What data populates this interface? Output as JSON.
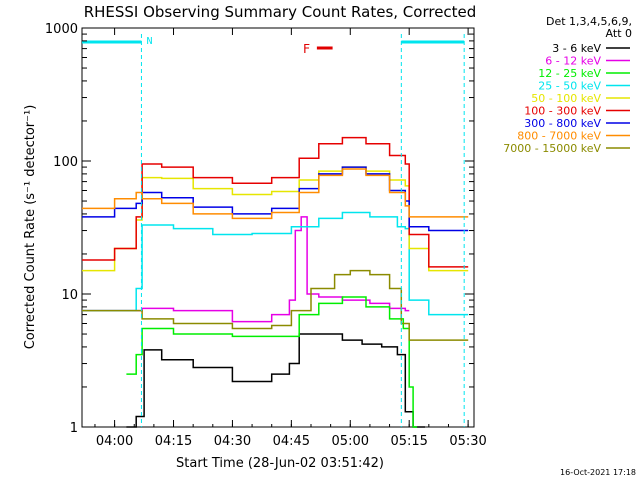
{
  "chart_data": {
    "type": "line",
    "title": "RHESSI Observing Summary Count Rates, Corrected",
    "xlabel": "Start Time (28-Jun-02 03:51:42)",
    "ylabel": "Corrected Count Rate (s⁻¹ detector⁻¹)",
    "y_scale": "log",
    "ylim": [
      1,
      1000
    ],
    "xlim": [
      "03:51:42",
      "05:31:30"
    ],
    "x_ticks": [
      "04:00",
      "04:15",
      "04:30",
      "04:45",
      "05:00",
      "05:15",
      "05:30"
    ],
    "y_ticks": [
      "1",
      "10",
      "100",
      "1000"
    ],
    "grid": false,
    "legend_position": "right",
    "legend_header": [
      "Det 1,3,4,5,6,9,",
      "Att 0"
    ],
    "footer_date": "16-Oct-2021 17:18",
    "night_segments": [
      {
        "label": "N",
        "start": "03:51:42",
        "end": "04:06:50",
        "color": "#00e5ee"
      },
      {
        "label": "",
        "start": "05:13:00",
        "end": "05:29:00",
        "color": "#00e5ee"
      }
    ],
    "flare_marker": {
      "label": "F",
      "start": "04:51:30",
      "end": "04:55:30",
      "color": "#e00000"
    },
    "series": [
      {
        "name": "3 - 6 keV",
        "color": "#000000",
        "x": [
          "04:03:00",
          "04:05:30",
          "04:07:30",
          "04:12:00",
          "04:20:00",
          "04:30:00",
          "04:40:00",
          "04:44:30",
          "04:47:00",
          "04:52:00",
          "04:58:00",
          "05:03:00",
          "05:08:00",
          "05:12:00",
          "05:14:00",
          "05:16:00",
          "05:18:00"
        ],
        "values": [
          1.0,
          1.2,
          3.8,
          3.2,
          2.8,
          2.2,
          2.5,
          3.0,
          5.0,
          5.0,
          4.5,
          4.2,
          4.0,
          3.5,
          1.3,
          1.0,
          1.0
        ]
      },
      {
        "name": "6 - 12 keV",
        "color": "#e600e6",
        "x": [
          "03:51:42",
          "04:00:00",
          "04:07:00",
          "04:15:00",
          "04:30:00",
          "04:40:00",
          "04:44:30",
          "04:46:00",
          "04:47:30",
          "04:49:00",
          "04:52:00",
          "04:58:00",
          "05:05:00",
          "05:10:00",
          "05:14:00"
        ],
        "values": [
          7.5,
          7.5,
          7.8,
          7.5,
          6.2,
          7.0,
          9.0,
          30.0,
          38.0,
          10.0,
          9.5,
          9.0,
          8.5,
          7.8,
          7.5
        ]
      },
      {
        "name": "12 - 25 keV",
        "color": "#00ee00",
        "x": [
          "04:03:00",
          "04:05:30",
          "04:07:00",
          "04:15:00",
          "04:30:00",
          "04:44:00",
          "04:47:00",
          "04:52:00",
          "04:58:00",
          "05:04:00",
          "05:10:00",
          "05:13:30",
          "05:15:00",
          "05:16:00"
        ],
        "values": [
          2.5,
          3.5,
          5.5,
          5.0,
          4.8,
          4.8,
          7.0,
          8.5,
          9.5,
          8.0,
          6.5,
          5.5,
          2.0,
          1.0
        ]
      },
      {
        "name": "25 - 50 keV",
        "color": "#00e5ee",
        "x": [
          "03:51:42",
          "04:02:00",
          "04:05:30",
          "04:07:00",
          "04:15:00",
          "04:25:00",
          "04:35:00",
          "04:45:00",
          "04:52:00",
          "04:58:00",
          "05:05:00",
          "05:12:00",
          "05:14:00",
          "05:15:00",
          "05:20:00",
          "05:29:00"
        ],
        "values": [
          7.5,
          7.5,
          11.0,
          33.0,
          31.0,
          28.0,
          28.5,
          32.0,
          37.0,
          41.0,
          38.0,
          32.0,
          31.0,
          9.0,
          7.0,
          7.0
        ]
      },
      {
        "name": "50 - 100 keV",
        "color": "#e6e600",
        "x": [
          "03:51:42",
          "04:00:00",
          "04:05:30",
          "04:07:00",
          "04:12:00",
          "04:20:00",
          "04:30:00",
          "04:40:00",
          "04:47:00",
          "04:52:00",
          "04:58:00",
          "05:04:00",
          "05:10:00",
          "05:14:00",
          "05:15:00",
          "05:20:00",
          "05:29:00"
        ],
        "values": [
          15.0,
          22.0,
          36.0,
          75.0,
          74.0,
          62.0,
          56.0,
          59.0,
          72.0,
          84.0,
          90.0,
          84.0,
          72.0,
          65.0,
          22.0,
          15.0,
          15.0
        ]
      },
      {
        "name": "100 - 300 keV",
        "color": "#e60000",
        "x": [
          "03:51:42",
          "04:00:00",
          "04:05:30",
          "04:07:00",
          "04:12:00",
          "04:20:00",
          "04:30:00",
          "04:40:00",
          "04:47:00",
          "04:52:00",
          "04:58:00",
          "05:04:00",
          "05:10:00",
          "05:14:00",
          "05:15:00",
          "05:20:00",
          "05:29:00"
        ],
        "values": [
          18.0,
          22.0,
          38.0,
          95.0,
          90.0,
          75.0,
          68.0,
          75.0,
          105.0,
          135.0,
          150.0,
          135.0,
          110.0,
          95.0,
          28.0,
          16.0,
          16.0
        ]
      },
      {
        "name": "300 - 800 keV",
        "color": "#0000e6",
        "x": [
          "03:51:42",
          "04:00:00",
          "04:05:30",
          "04:07:00",
          "04:12:00",
          "04:20:00",
          "04:30:00",
          "04:40:00",
          "04:47:00",
          "04:52:00",
          "04:58:00",
          "05:04:00",
          "05:10:00",
          "05:14:00",
          "05:15:00",
          "05:20:00",
          "05:29:00"
        ],
        "values": [
          38.0,
          44.0,
          48.0,
          58.0,
          53.0,
          45.0,
          40.0,
          44.0,
          62.0,
          80.0,
          90.0,
          80.0,
          60.0,
          50.0,
          32.0,
          30.0,
          30.0
        ]
      },
      {
        "name": "800 - 7000 keV",
        "color": "#ff8c00",
        "x": [
          "03:51:42",
          "04:00:00",
          "04:05:30",
          "04:07:00",
          "04:12:00",
          "04:20:00",
          "04:30:00",
          "04:40:00",
          "04:47:00",
          "04:52:00",
          "04:58:00",
          "05:04:00",
          "05:10:00",
          "05:14:00",
          "05:15:00",
          "05:20:00",
          "05:29:00"
        ],
        "values": [
          44.0,
          52.0,
          58.0,
          52.0,
          48.0,
          40.0,
          37.0,
          41.0,
          58.0,
          78.0,
          87.0,
          78.0,
          58.0,
          46.0,
          38.0,
          38.0,
          38.0
        ]
      },
      {
        "name": "7000 - 15000 keV",
        "color": "#8b8b00",
        "x": [
          "03:51:42",
          "04:05:00",
          "04:07:00",
          "04:15:00",
          "04:30:00",
          "04:40:00",
          "04:45:00",
          "04:50:00",
          "04:56:00",
          "05:00:00",
          "05:05:00",
          "05:10:00",
          "05:13:00",
          "05:15:00",
          "05:29:00"
        ],
        "values": [
          7.5,
          7.5,
          6.5,
          6.0,
          5.5,
          5.8,
          7.5,
          11.0,
          14.0,
          15.0,
          14.0,
          11.0,
          6.0,
          4.5,
          4.5
        ]
      }
    ]
  }
}
